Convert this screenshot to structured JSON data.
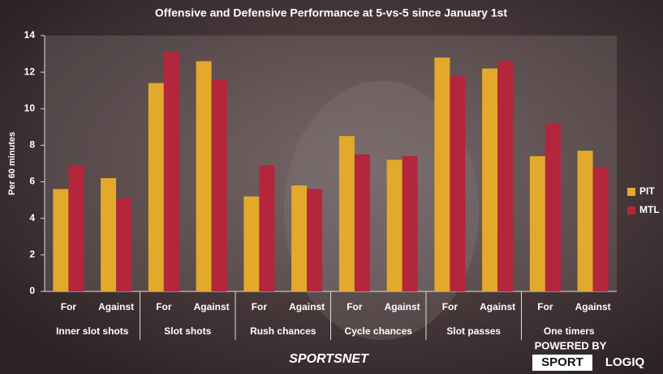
{
  "chart_data": {
    "type": "bar",
    "title": "Offensive and Defensive Performance at 5-vs-5 since January 1st",
    "y_label": "Per 60 minutes",
    "categories": [
      "For",
      "Against",
      "For",
      "Against",
      "For",
      "Against",
      "For",
      "Against",
      "For",
      "Against",
      "For",
      "Against"
    ],
    "groups": [
      "Inner slot shots",
      "Slot shots",
      "Rush chances",
      "Cycle chances",
      "Slot passes",
      "One timers"
    ],
    "series": [
      {
        "name": "PIT",
        "color": "#e3a92b",
        "values": [
          5.6,
          6.2,
          11.4,
          12.6,
          5.2,
          5.8,
          8.5,
          7.2,
          12.8,
          12.2,
          7.4,
          7.7
        ]
      },
      {
        "name": "MTL",
        "color": "#b3263c",
        "values": [
          6.9,
          5.1,
          13.1,
          11.6,
          6.9,
          5.6,
          7.5,
          7.4,
          11.8,
          12.6,
          9.2,
          6.8
        ]
      }
    ],
    "ylim": [
      0,
      14
    ],
    "yticks": [
      0,
      2,
      4,
      6,
      8,
      10,
      12,
      14
    ],
    "grid": false,
    "legend": "right",
    "annotations": [
      "SPORTSNET",
      "POWERED BY",
      "SPORT",
      "LOGIQ"
    ]
  }
}
